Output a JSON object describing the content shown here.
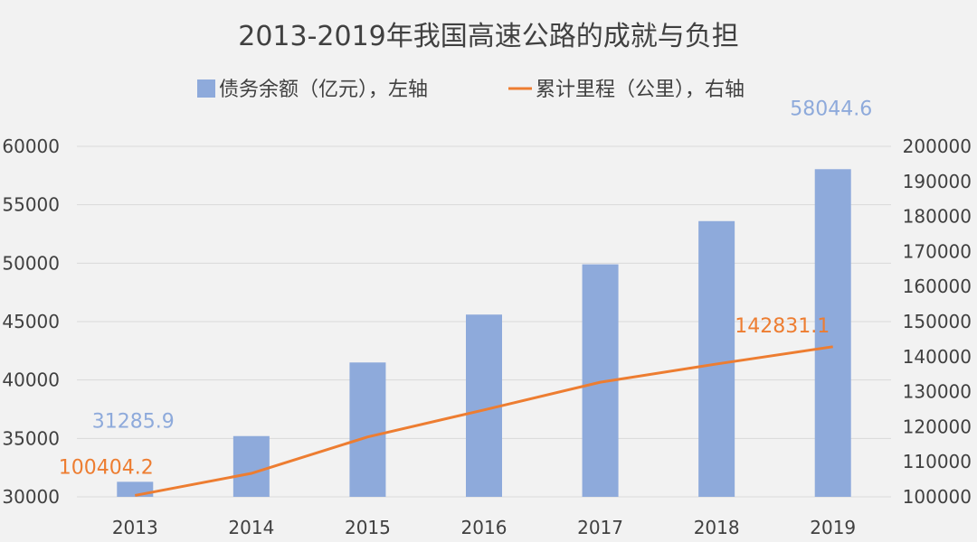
{
  "chart_data": {
    "type": "bar+line",
    "title": "2013-2019年我国高速公路的成就与负担",
    "categories": [
      "2013",
      "2014",
      "2015",
      "2016",
      "2017",
      "2018",
      "2019"
    ],
    "legend_position": "top-center",
    "grid": true,
    "series": [
      {
        "name": "债务余额（亿元），左轴",
        "type": "bar",
        "axis": "left",
        "color": "#8eaadb",
        "values": [
          31285.9,
          35200,
          41500,
          45600,
          49900,
          53600,
          58044.6
        ],
        "data_labels": {
          "0": "31285.9",
          "6": "58044.6"
        }
      },
      {
        "name": "累计里程（公里），右轴",
        "type": "line",
        "axis": "right",
        "color": "#ed7d31",
        "values": [
          100404.2,
          106700,
          117100,
          124800,
          132700,
          137900,
          142831.1
        ],
        "data_labels": {
          "0": "100404.2",
          "6": "142831.1"
        }
      }
    ],
    "y_left": {
      "min": 30000,
      "max": 60000,
      "ticks": [
        "30000",
        "35000",
        "40000",
        "45000",
        "50000",
        "55000",
        "60000"
      ]
    },
    "y_right": {
      "min": 100000,
      "max": 200000,
      "ticks": [
        "100000",
        "110000",
        "120000",
        "130000",
        "140000",
        "150000",
        "160000",
        "170000",
        "180000",
        "190000",
        "200000"
      ]
    }
  }
}
